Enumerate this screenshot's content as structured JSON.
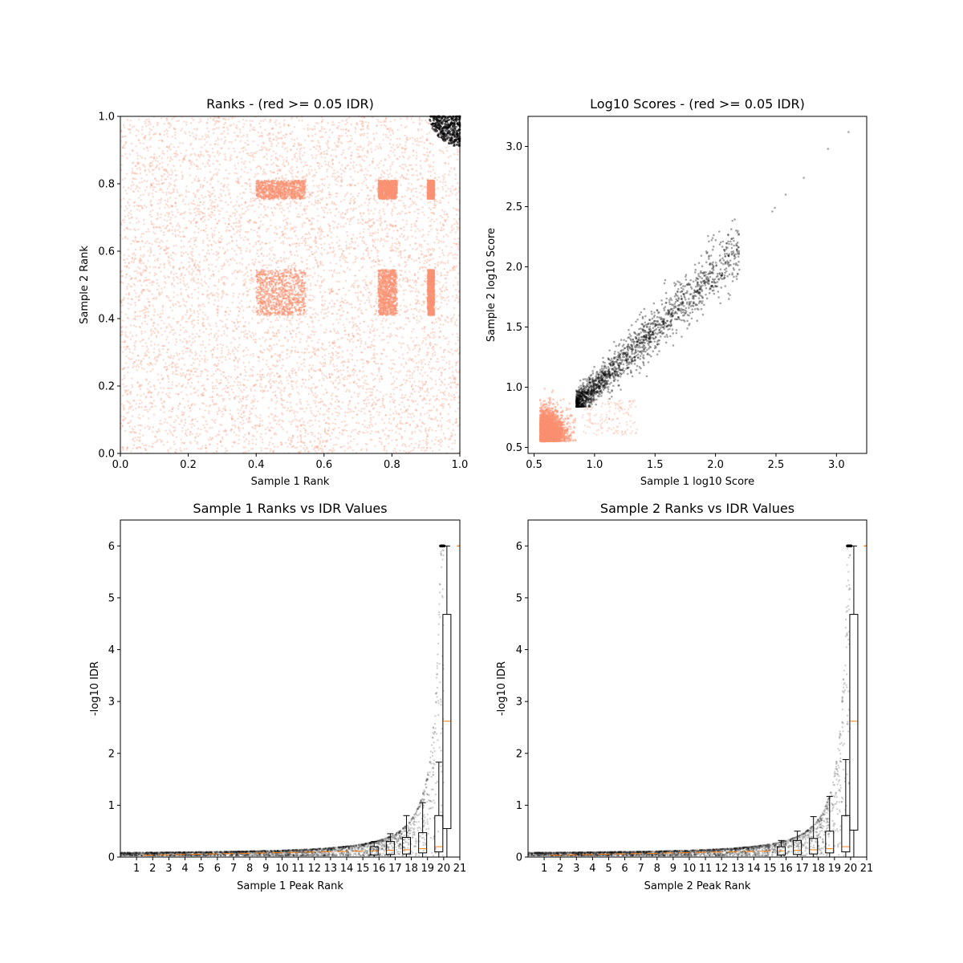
{
  "chart_data": [
    {
      "id": "ranks",
      "type": "scatter",
      "title": "Ranks - (red >= 0.05 IDR)",
      "xlabel": "Sample 1 Rank",
      "ylabel": "Sample 2 Rank",
      "xlim": [
        0,
        1
      ],
      "ylim": [
        0,
        1
      ],
      "xticks": [
        "0.0",
        "0.2",
        "0.4",
        "0.6",
        "0.8",
        "1.0"
      ],
      "yticks": [
        "0.0",
        "0.2",
        "0.4",
        "0.6",
        "0.8",
        "1.0"
      ],
      "grid": false,
      "colors": {
        "above_threshold": "#fa9172",
        "below_threshold": "#000000"
      },
      "dense_blocks": [
        {
          "x": [
            0.4,
            0.545
          ],
          "y": [
            0.41,
            0.545
          ]
        },
        {
          "x": [
            0.4,
            0.545
          ],
          "y": [
            0.755,
            0.81
          ]
        },
        {
          "x": [
            0.76,
            0.815
          ],
          "y": [
            0.41,
            0.545
          ]
        },
        {
          "x": [
            0.76,
            0.815
          ],
          "y": [
            0.755,
            0.81
          ]
        },
        {
          "x": [
            0.905,
            0.925
          ],
          "y": [
            0.41,
            0.545
          ]
        },
        {
          "x": [
            0.905,
            0.925
          ],
          "y": [
            0.755,
            0.81
          ]
        }
      ],
      "black_cluster": {
        "x": [
          0.9,
          1.0
        ],
        "y": [
          0.9,
          1.0
        ]
      }
    },
    {
      "id": "scores",
      "type": "scatter",
      "title": "Log10 Scores - (red >= 0.05 IDR)",
      "xlabel": "Sample 1 log10 Score",
      "ylabel": "Sample 2 log10 Score",
      "xlim": [
        0.45,
        3.25
      ],
      "ylim": [
        0.45,
        3.25
      ],
      "xticks": [
        "0.5",
        "1.0",
        "1.5",
        "2.0",
        "2.5",
        "3.0"
      ],
      "yticks": [
        "0.5",
        "1.0",
        "1.5",
        "2.0",
        "2.5",
        "3.0"
      ],
      "grid": false,
      "colors": {
        "above_threshold": "#fa9172",
        "below_threshold": "#000000"
      },
      "salmon_region": {
        "x": [
          0.55,
          0.95
        ],
        "y": [
          0.55,
          1.05
        ]
      },
      "black_trend": {
        "x": [
          0.85,
          2.2
        ],
        "y": [
          0.85,
          2.15
        ]
      },
      "outliers": [
        {
          "x": 2.47,
          "y": 2.46
        },
        {
          "x": 2.49,
          "y": 2.49
        },
        {
          "x": 2.58,
          "y": 2.6
        },
        {
          "x": 2.73,
          "y": 2.74
        },
        {
          "x": 2.93,
          "y": 2.98
        },
        {
          "x": 3.1,
          "y": 3.12
        }
      ]
    },
    {
      "id": "s1idr",
      "type": "scatter",
      "title": "Sample 1 Ranks vs IDR Values",
      "xlabel": "Sample 1 Peak Rank",
      "ylabel": "-log10 IDR",
      "xlim": [
        0,
        21
      ],
      "ylim": [
        0,
        6.5
      ],
      "xticks": [
        "1",
        "2",
        "3",
        "4",
        "5",
        "6",
        "7",
        "8",
        "9",
        "10",
        "11",
        "12",
        "13",
        "14",
        "15",
        "16",
        "17",
        "18",
        "19",
        "20",
        "21"
      ],
      "yticks": [
        "0",
        "1",
        "2",
        "3",
        "4",
        "5",
        "6"
      ],
      "grid": false,
      "boxplots": [
        {
          "pos": 15.7,
          "q1": 0.04,
          "med": 0.12,
          "q3": 0.2,
          "whisk_hi": 0.3
        },
        {
          "pos": 16.7,
          "q1": 0.05,
          "med": 0.13,
          "q3": 0.3,
          "whisk_hi": 0.45
        },
        {
          "pos": 17.7,
          "q1": 0.06,
          "med": 0.14,
          "q3": 0.38,
          "whisk_hi": 0.8
        },
        {
          "pos": 18.7,
          "q1": 0.08,
          "med": 0.16,
          "q3": 0.47,
          "whisk_hi": 1.05
        },
        {
          "pos": 19.7,
          "q1": 0.1,
          "med": 0.2,
          "q3": 0.8,
          "whisk_hi": 1.83
        },
        {
          "pos": 20.2,
          "q1": 0.55,
          "med": 2.62,
          "q3": 4.68,
          "whisk_hi": 6.0
        }
      ]
    },
    {
      "id": "s2idr",
      "type": "scatter",
      "title": "Sample 2 Ranks vs IDR Values",
      "xlabel": "Sample 2 Peak Rank",
      "ylabel": "-log10 IDR",
      "xlim": [
        0,
        21
      ],
      "ylim": [
        0,
        6.5
      ],
      "xticks": [
        "1",
        "2",
        "3",
        "4",
        "5",
        "6",
        "7",
        "8",
        "9",
        "10",
        "11",
        "12",
        "13",
        "14",
        "15",
        "16",
        "17",
        "18",
        "19",
        "20",
        "21"
      ],
      "yticks": [
        "0",
        "1",
        "2",
        "3",
        "4",
        "5",
        "6"
      ],
      "grid": false,
      "boxplots": [
        {
          "pos": 15.7,
          "q1": 0.04,
          "med": 0.12,
          "q3": 0.2,
          "whisk_hi": 0.32
        },
        {
          "pos": 16.7,
          "q1": 0.05,
          "med": 0.13,
          "q3": 0.32,
          "whisk_hi": 0.5
        },
        {
          "pos": 17.7,
          "q1": 0.06,
          "med": 0.14,
          "q3": 0.36,
          "whisk_hi": 0.78
        },
        {
          "pos": 18.7,
          "q1": 0.08,
          "med": 0.16,
          "q3": 0.5,
          "whisk_hi": 1.17
        },
        {
          "pos": 19.7,
          "q1": 0.1,
          "med": 0.2,
          "q3": 0.8,
          "whisk_hi": 1.88
        },
        {
          "pos": 20.2,
          "q1": 0.52,
          "med": 2.62,
          "q3": 4.68,
          "whisk_hi": 6.0
        }
      ]
    }
  ]
}
